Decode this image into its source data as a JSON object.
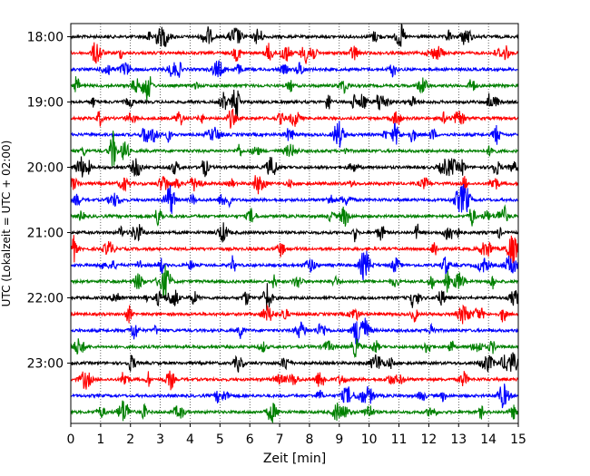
{
  "chart_data": {
    "type": "line",
    "title": "",
    "xlabel": "Zeit  [min]",
    "ylabel": "UTC (Lokalzeit = UTC + 02:00)",
    "xlim": [
      0,
      15
    ],
    "x_ticks": [
      "0",
      "1",
      "2",
      "3",
      "4",
      "5",
      "6",
      "7",
      "8",
      "9",
      "10",
      "11",
      "12",
      "13",
      "14",
      "15"
    ],
    "y_ticks": [
      "18:00",
      "19:00",
      "20:00",
      "21:00",
      "22:00",
      "23:00"
    ],
    "grid": "vertical dotted at each minute",
    "legend": "none",
    "series": [
      {
        "start": "18:00",
        "color": "#000000",
        "amplitude": 0.35
      },
      {
        "start": "18:15",
        "color": "#ff0000",
        "amplitude": 0.35
      },
      {
        "start": "18:30",
        "color": "#0000ff",
        "amplitude": 0.35
      },
      {
        "start": "18:45",
        "color": "#008000",
        "amplitude": 0.35
      },
      {
        "start": "19:00",
        "color": "#000000",
        "amplitude": 0.35
      },
      {
        "start": "19:15",
        "color": "#ff0000",
        "amplitude": 0.35
      },
      {
        "start": "19:30",
        "color": "#0000ff",
        "amplitude": 0.35
      },
      {
        "start": "19:45",
        "color": "#008000",
        "amplitude": 0.35
      },
      {
        "start": "20:00",
        "color": "#000000",
        "amplitude": 0.35
      },
      {
        "start": "20:15",
        "color": "#ff0000",
        "amplitude": 0.35
      },
      {
        "start": "20:30",
        "color": "#0000ff",
        "amplitude": 0.35
      },
      {
        "start": "20:45",
        "color": "#008000",
        "amplitude": 0.35
      },
      {
        "start": "21:00",
        "color": "#000000",
        "amplitude": 0.35
      },
      {
        "start": "21:15",
        "color": "#ff0000",
        "amplitude": 0.35
      },
      {
        "start": "21:30",
        "color": "#0000ff",
        "amplitude": 0.35
      },
      {
        "start": "21:45",
        "color": "#008000",
        "amplitude": 0.35
      },
      {
        "start": "22:00",
        "color": "#000000",
        "amplitude": 0.35
      },
      {
        "start": "22:15",
        "color": "#ff0000",
        "amplitude": 0.35
      },
      {
        "start": "22:30",
        "color": "#0000ff",
        "amplitude": 0.35
      },
      {
        "start": "22:45",
        "color": "#008000",
        "amplitude": 0.35
      },
      {
        "start": "23:00",
        "color": "#000000",
        "amplitude": 0.35
      },
      {
        "start": "23:15",
        "color": "#ff0000",
        "amplitude": 0.35
      },
      {
        "start": "23:30",
        "color": "#0000ff",
        "amplitude": 0.35
      },
      {
        "start": "23:45",
        "color": "#008000",
        "amplitude": 0.35
      }
    ]
  }
}
